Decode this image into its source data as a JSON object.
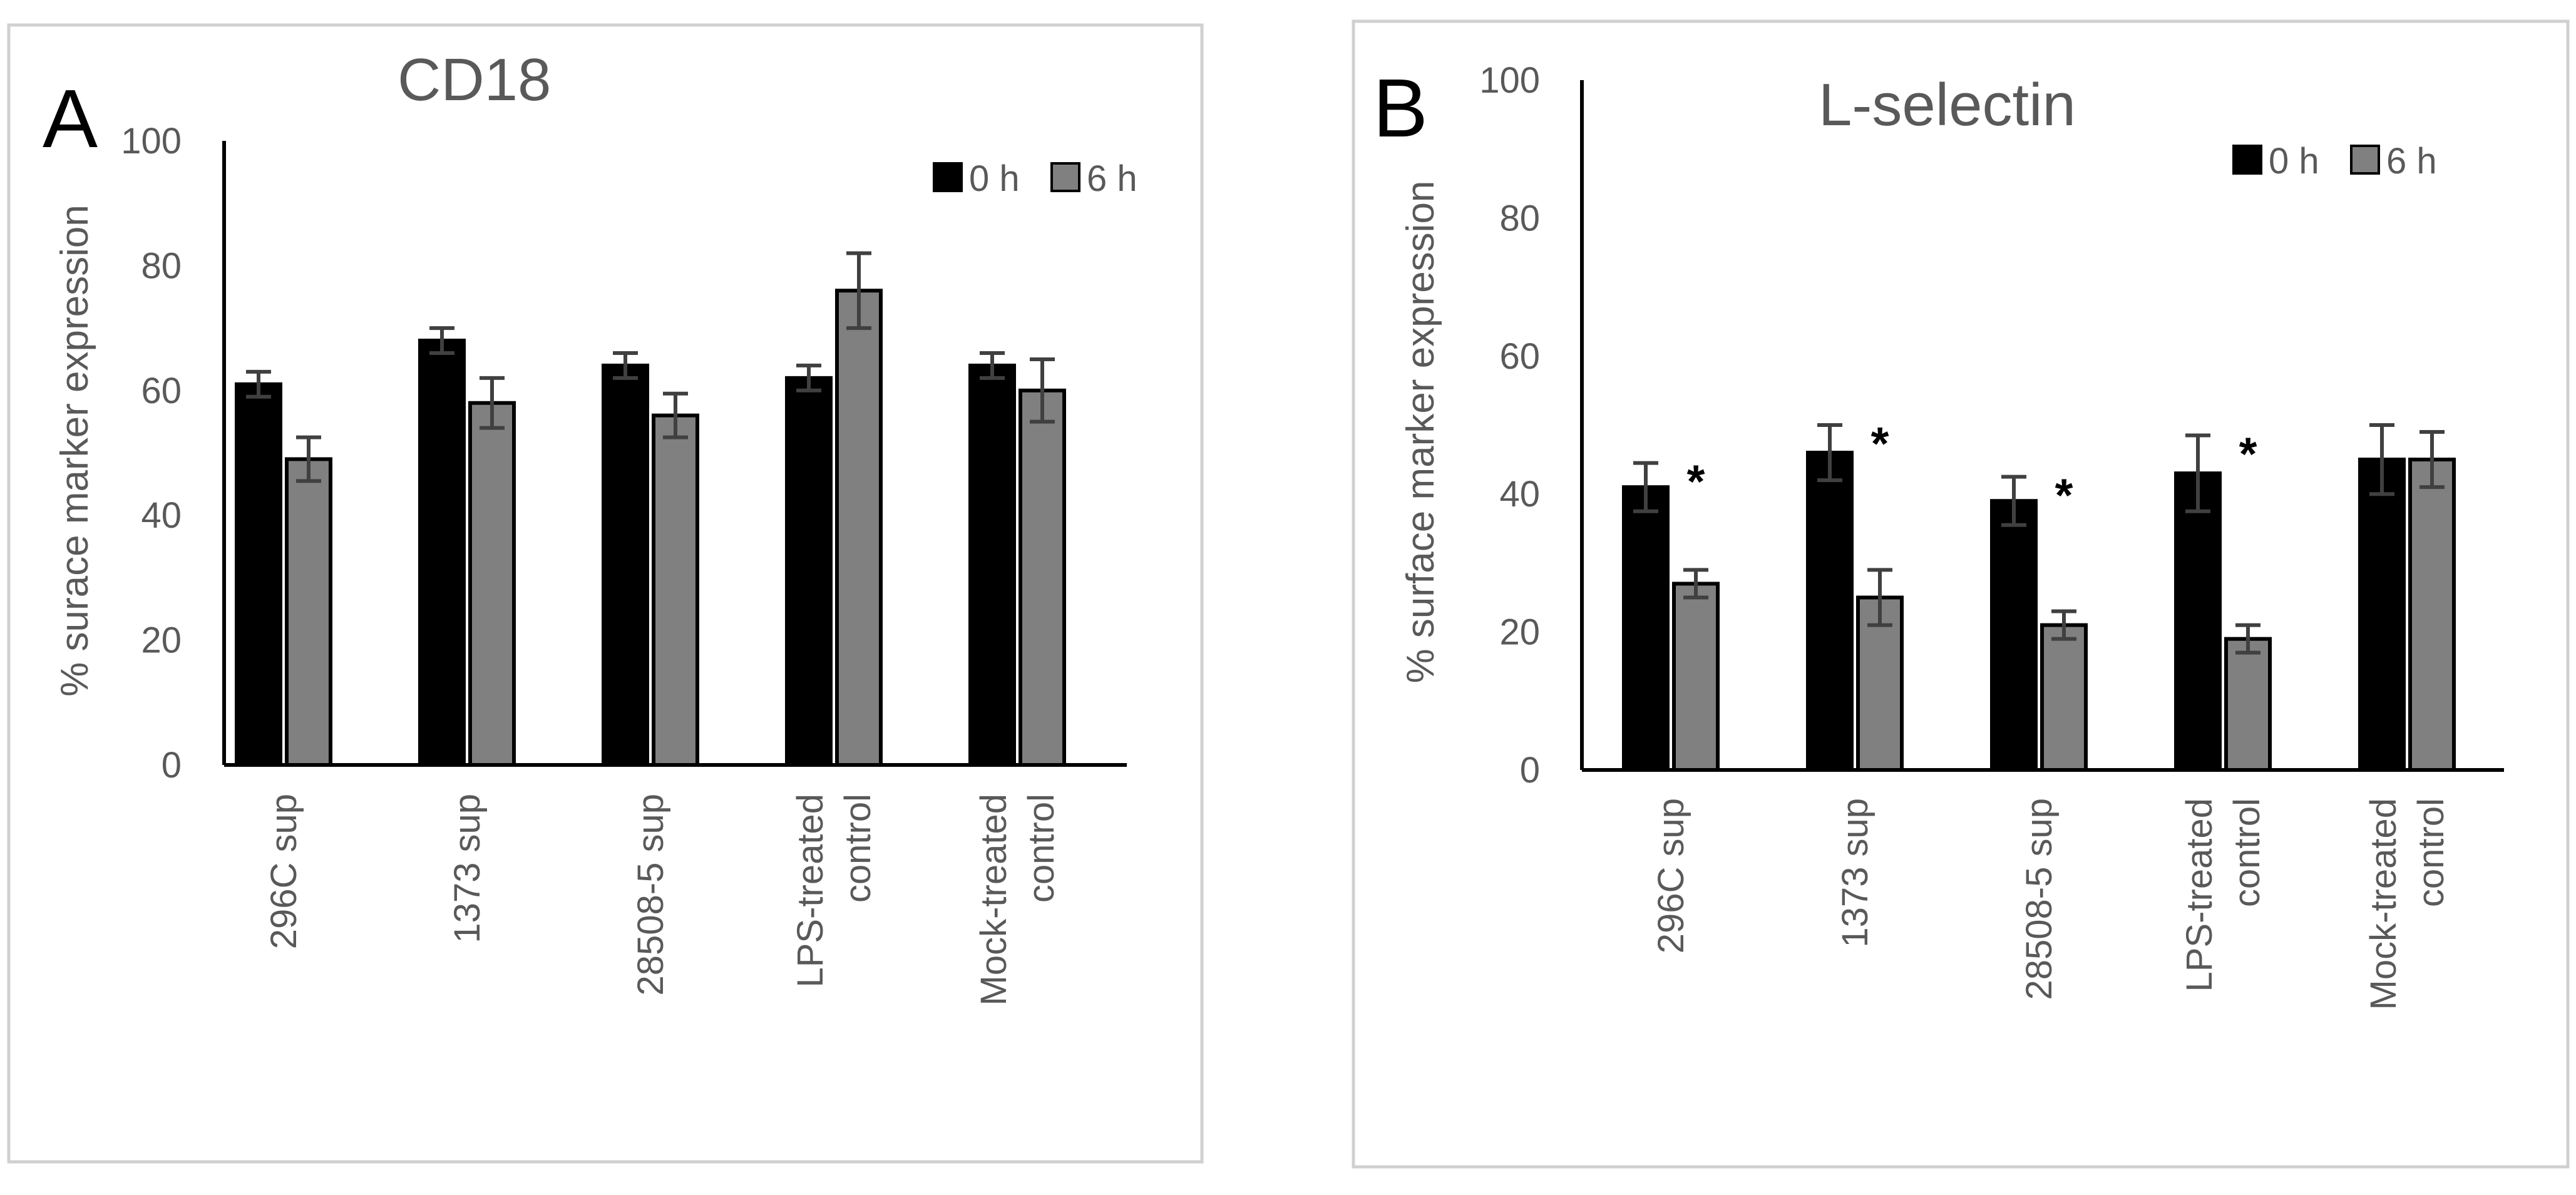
{
  "colors": {
    "series0": "#000000",
    "series1": "#808080",
    "text": "#595959"
  },
  "chart_data": [
    {
      "type": "bar",
      "panel_letter": "A",
      "title": "CD18",
      "ylabel": "% surace marker expression",
      "xlabel": "",
      "ylim": [
        0,
        100
      ],
      "yticks": [
        "0",
        "20",
        "40",
        "60",
        "80",
        "100"
      ],
      "categories": [
        [
          "296C sup"
        ],
        [
          "1373 sup"
        ],
        [
          "28508-5 sup"
        ],
        [
          "LPS-treated",
          "control"
        ],
        [
          "Mock-treated",
          "control"
        ]
      ],
      "series": [
        {
          "name": "0 h",
          "values": [
            61,
            68,
            64,
            62,
            64
          ],
          "errors": [
            2,
            2,
            2,
            2,
            2
          ]
        },
        {
          "name": "6 h",
          "values": [
            49,
            58,
            56,
            76,
            60
          ],
          "errors": [
            3.5,
            4,
            3.5,
            6,
            5
          ]
        }
      ],
      "significance": [
        "",
        "",
        "",
        "",
        ""
      ],
      "legend": "top-right"
    },
    {
      "type": "bar",
      "panel_letter": "B",
      "title": "L-selectin",
      "ylabel": "% surface marker expression",
      "xlabel": "",
      "ylim": [
        0,
        100
      ],
      "yticks": [
        "0",
        "20",
        "40",
        "60",
        "80",
        "100"
      ],
      "categories": [
        [
          "296C sup"
        ],
        [
          "1373 sup"
        ],
        [
          "28508-5 sup"
        ],
        [
          "LPS-treated",
          "control"
        ],
        [
          "Mock-treated",
          "control"
        ]
      ],
      "series": [
        {
          "name": "0 h",
          "values": [
            41,
            46,
            39,
            43,
            45
          ],
          "errors": [
            3.5,
            4,
            3.5,
            5.5,
            5
          ]
        },
        {
          "name": "6 h",
          "values": [
            27,
            25,
            21,
            19,
            45
          ],
          "errors": [
            2,
            4,
            2,
            2,
            4
          ]
        }
      ],
      "significance": [
        "*",
        "*",
        "*",
        "*",
        ""
      ],
      "legend": "top-right"
    }
  ]
}
